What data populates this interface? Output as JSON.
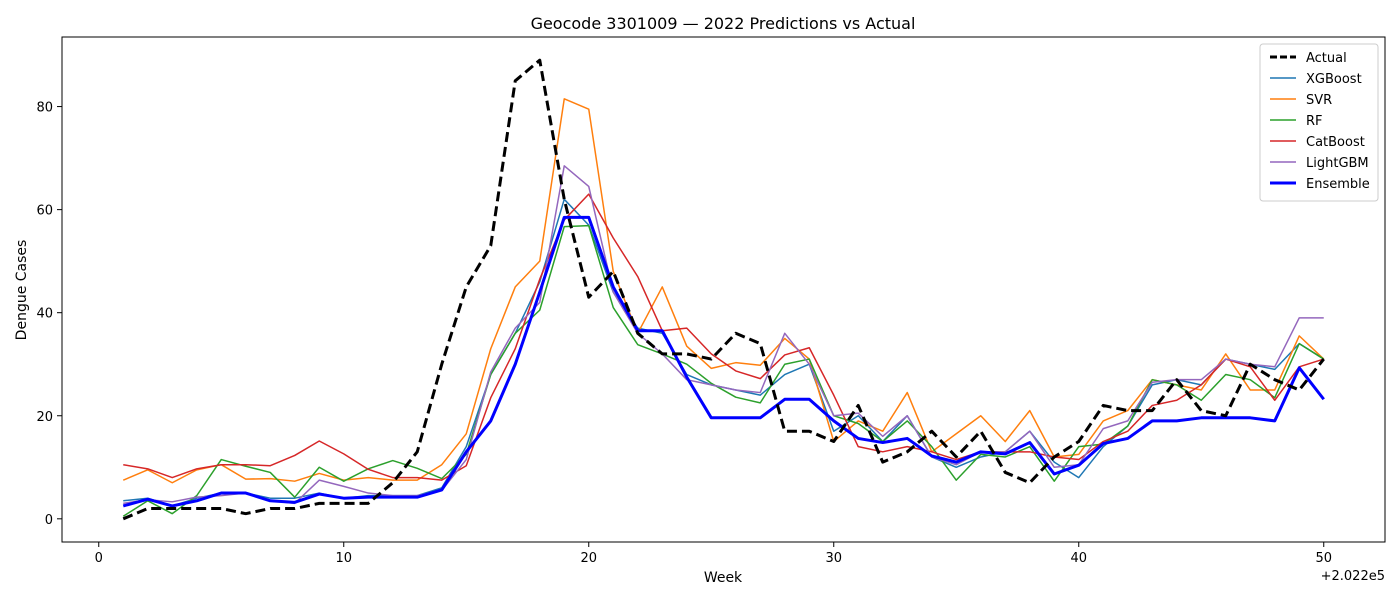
{
  "chart_data": {
    "type": "line",
    "title": "Geocode 3301009 — 2022 Predictions vs Actual",
    "xlabel": "Week",
    "ylabel": "Dengue Cases",
    "x_offset_label": "+2.022e5",
    "xlim": [
      -1.5,
      52.5
    ],
    "ylim": [
      -4.5,
      93.5
    ],
    "x_ticks": [
      0,
      10,
      20,
      30,
      40,
      50
    ],
    "y_ticks": [
      0,
      20,
      40,
      60,
      80
    ],
    "grid": false,
    "legend_position": "top-right",
    "x": [
      1,
      2,
      3,
      4,
      5,
      6,
      7,
      8,
      9,
      10,
      11,
      12,
      13,
      14,
      15,
      16,
      17,
      18,
      19,
      20,
      21,
      22,
      23,
      24,
      25,
      26,
      27,
      28,
      29,
      30,
      31,
      32,
      33,
      34,
      35,
      36,
      37,
      38,
      39,
      40,
      41,
      42,
      43,
      44,
      45,
      46,
      47,
      48,
      49,
      50
    ],
    "series": [
      {
        "name": "Actual",
        "color": "#000000",
        "style": "dashed",
        "values": [
          0,
          2,
          2,
          2,
          2,
          1,
          2,
          2,
          3,
          3,
          3,
          7,
          13,
          30,
          45,
          53,
          85,
          89,
          62,
          43,
          48,
          36,
          32,
          32,
          31,
          36,
          34,
          17,
          17,
          15,
          22,
          11,
          13,
          17,
          12,
          17,
          9,
          7,
          12,
          15,
          22,
          21,
          21,
          27,
          21,
          20,
          30,
          27,
          25,
          31
        ]
      },
      {
        "name": "XGBoost",
        "color": "#1f77b4",
        "style": "solid",
        "values": [
          3.5,
          4,
          2.5,
          4,
          5,
          5,
          4,
          4,
          5,
          4,
          4.5,
          4.5,
          4.5,
          6,
          14,
          28,
          36,
          46,
          62,
          57,
          44,
          37,
          36,
          28,
          26,
          25,
          24,
          28,
          30,
          17,
          20,
          15,
          20,
          12,
          10,
          12,
          13,
          17,
          11,
          8,
          14,
          18,
          26,
          27,
          26,
          31,
          30,
          29,
          34,
          31
        ]
      },
      {
        "name": "SVR",
        "color": "#ff7f0e",
        "style": "solid",
        "values": [
          7.5,
          9.5,
          7,
          9.5,
          10.5,
          7.7,
          7.8,
          7.3,
          8.8,
          7.5,
          8,
          7.5,
          7.5,
          10.5,
          16.5,
          33,
          45,
          50,
          81.5,
          79.5,
          48,
          36,
          45,
          33.5,
          29.2,
          30.3,
          29.8,
          35,
          31,
          15,
          19,
          17,
          24.5,
          13,
          16.5,
          20,
          15,
          21,
          12,
          12.5,
          19,
          21,
          27,
          26,
          25,
          32,
          25,
          25,
          35.5,
          31
        ]
      },
      {
        "name": "RF",
        "color": "#2ca02c",
        "style": "solid",
        "values": [
          0.5,
          3.5,
          1,
          4.5,
          11.5,
          10.2,
          9,
          4.2,
          10,
          7.3,
          9.7,
          11.3,
          9.8,
          7.8,
          12.5,
          28,
          36,
          40.5,
          56.7,
          56.9,
          41,
          33.8,
          32,
          30,
          26.3,
          23.6,
          22.5,
          30,
          31,
          20,
          18.5,
          15,
          19,
          14,
          7.5,
          12.5,
          12,
          14,
          7.3,
          14,
          14.5,
          18,
          27,
          26,
          23,
          28,
          27,
          23.5,
          34,
          31
        ]
      },
      {
        "name": "CatBoost",
        "color": "#d62728",
        "style": "solid",
        "values": [
          10.5,
          9.7,
          8,
          9.7,
          10.5,
          10.5,
          10.3,
          12.3,
          15.1,
          12.6,
          9.6,
          8,
          8,
          7.5,
          10.3,
          23.5,
          33,
          46.5,
          58,
          63,
          54.5,
          47,
          36.5,
          37,
          32,
          28.7,
          27.2,
          31.8,
          33.2,
          24,
          14,
          13,
          14,
          13,
          11.5,
          13,
          13,
          13,
          12,
          11.5,
          15,
          17,
          22,
          23,
          26,
          31,
          29.5,
          23,
          29.5,
          31
        ]
      },
      {
        "name": "LightGBM",
        "color": "#9467bd",
        "style": "solid",
        "values": [
          3,
          3.7,
          3.3,
          4.2,
          4.5,
          5,
          3.5,
          3,
          7.5,
          6.3,
          5,
          4.5,
          4.5,
          5.5,
          11.5,
          28.5,
          37,
          42,
          68.5,
          64.5,
          44,
          36,
          32,
          27,
          26,
          25,
          24.5,
          36,
          30,
          20,
          20.5,
          16,
          20,
          12,
          10.5,
          13,
          13,
          17,
          10,
          10.5,
          17.5,
          19,
          26.5,
          27,
          27,
          31,
          30,
          29.5,
          39,
          39
        ]
      },
      {
        "name": "Ensemble",
        "color": "#0000ff",
        "style": "solid-thick",
        "values": [
          2.5,
          3.8,
          2.5,
          3.5,
          5,
          5,
          3.5,
          3.2,
          4.8,
          4,
          4.2,
          4.2,
          4.2,
          5.6,
          13,
          19,
          30,
          44,
          58.5,
          58.5,
          45,
          36.5,
          36.5,
          27.5,
          19.6,
          19.6,
          19.6,
          23.2,
          23.2,
          19,
          15.6,
          14.8,
          15.6,
          12.2,
          11,
          13,
          12.6,
          14.8,
          8.7,
          10.4,
          14.6,
          15.6,
          19,
          19,
          19.6,
          19.6,
          19.6,
          19,
          29.3,
          23.2
        ]
      }
    ]
  }
}
